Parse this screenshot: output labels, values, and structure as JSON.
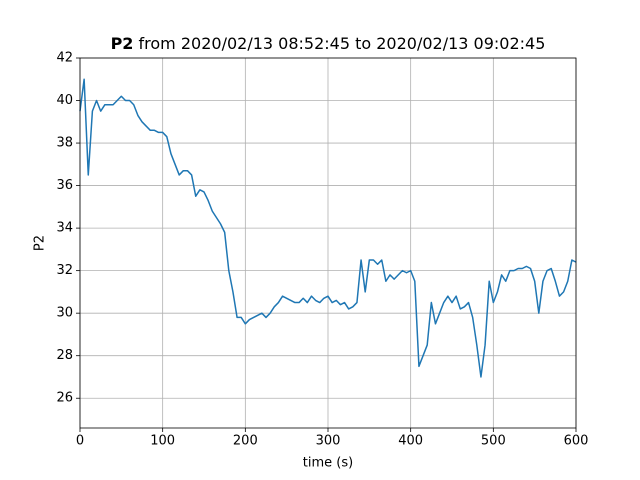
{
  "chart_data": {
    "type": "line",
    "title_bold": "P2",
    "title": "from 2020/02/13 08:52:45 to 2020/02/13 09:02:45",
    "x_label": "time (s)",
    "y_label": "P2",
    "xlim": [
      0,
      600
    ],
    "xticks": [
      0,
      100,
      200,
      300,
      400,
      500,
      600
    ],
    "ylim": [
      24.6,
      42
    ],
    "yticks": [
      26,
      28,
      30,
      32,
      34,
      36,
      38,
      40,
      42
    ],
    "grid": true,
    "x": [
      0,
      5,
      10,
      15,
      20,
      25,
      30,
      35,
      40,
      45,
      50,
      55,
      60,
      65,
      70,
      75,
      80,
      85,
      90,
      95,
      100,
      105,
      110,
      115,
      120,
      125,
      130,
      135,
      140,
      145,
      150,
      155,
      160,
      165,
      170,
      175,
      180,
      185,
      190,
      195,
      200,
      205,
      210,
      215,
      220,
      225,
      230,
      235,
      240,
      245,
      250,
      255,
      260,
      265,
      270,
      275,
      280,
      285,
      290,
      295,
      300,
      305,
      310,
      315,
      320,
      325,
      330,
      335,
      340,
      345,
      350,
      355,
      360,
      365,
      370,
      375,
      380,
      385,
      390,
      395,
      400,
      405,
      410,
      415,
      420,
      425,
      430,
      435,
      440,
      445,
      450,
      455,
      460,
      465,
      470,
      475,
      480,
      485,
      490,
      495,
      500,
      505,
      510,
      515,
      520,
      525,
      530,
      535,
      540,
      545,
      550,
      555,
      560,
      565,
      570,
      575,
      580,
      585,
      590,
      595,
      600
    ],
    "series": [
      {
        "color": "#1f77b4",
        "values": [
          39.5,
          41,
          36.5,
          39.5,
          40,
          39.5,
          39.8,
          39.8,
          39.8,
          40,
          40.2,
          40,
          40,
          39.8,
          39.3,
          39,
          38.8,
          38.6,
          38.6,
          38.5,
          38.5,
          38.3,
          37.5,
          37,
          36.5,
          36.7,
          36.7,
          36.5,
          35.5,
          35.8,
          35.7,
          35.3,
          34.8,
          34.5,
          34.2,
          33.8,
          32,
          31,
          29.8,
          29.8,
          29.5,
          29.7,
          29.8,
          29.9,
          30,
          29.8,
          30,
          30.3,
          30.5,
          30.8,
          30.7,
          30.6,
          30.5,
          30.5,
          30.7,
          30.5,
          30.8,
          30.6,
          30.5,
          30.7,
          30.8,
          30.5,
          30.6,
          30.4,
          30.5,
          30.2,
          30.3,
          30.5,
          32.5,
          31,
          32.5,
          32.5,
          32.3,
          32.5,
          31.5,
          31.8,
          31.6,
          31.8,
          32,
          31.9,
          32,
          31.5,
          27.5,
          28,
          28.5,
          30.5,
          29.5,
          30,
          30.5,
          30.8,
          30.5,
          30.8,
          30.2,
          30.3,
          30.5,
          29.8,
          28.5,
          27,
          28.5,
          31.5,
          30.5,
          31,
          31.8,
          31.5,
          32,
          32,
          32.1,
          32.1,
          32.2,
          32.1,
          31.5,
          30,
          31.5,
          32,
          32.1,
          31.5,
          30.8,
          31,
          31.5,
          32.5,
          32.4
        ]
      }
    ]
  }
}
